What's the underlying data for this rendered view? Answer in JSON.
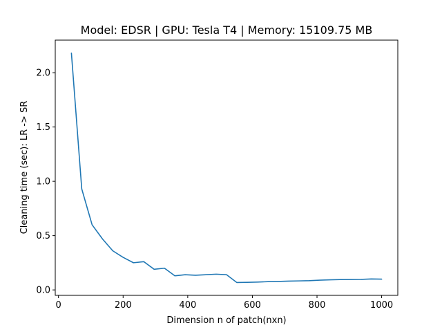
{
  "chart_data": {
    "type": "line",
    "title": "Model: EDSR | GPU: Tesla T4 | Memory: 15109.75 MB",
    "xlabel": "Dimension n of patch(nxn)",
    "ylabel": "Cleaning time (sec): LR -> SR",
    "xlim": [
      -10,
      1050
    ],
    "ylim": [
      -0.05,
      2.3
    ],
    "xticks": [
      0,
      200,
      400,
      600,
      800,
      1000
    ],
    "xtick_labels": [
      "0",
      "200",
      "400",
      "600",
      "800",
      "1000"
    ],
    "yticks": [
      0.0,
      0.5,
      1.0,
      1.5,
      2.0
    ],
    "ytick_labels": [
      "0.0",
      "0.5",
      "1.0",
      "1.5",
      "2.0"
    ],
    "grid": false,
    "series": [
      {
        "color": "#1f77b4",
        "x": [
          40,
          72,
          104,
          136,
          168,
          200,
          232,
          264,
          296,
          328,
          360,
          392,
          424,
          456,
          488,
          520,
          552,
          584,
          616,
          648,
          680,
          712,
          744,
          776,
          808,
          840,
          872,
          904,
          936,
          968,
          1000
        ],
        "y": [
          2.18,
          0.93,
          0.6,
          0.47,
          0.36,
          0.3,
          0.25,
          0.26,
          0.19,
          0.2,
          0.13,
          0.14,
          0.135,
          0.14,
          0.145,
          0.14,
          0.068,
          0.07,
          0.072,
          0.076,
          0.078,
          0.081,
          0.083,
          0.085,
          0.09,
          0.093,
          0.095,
          0.096,
          0.097,
          0.101,
          0.099
        ]
      }
    ]
  }
}
